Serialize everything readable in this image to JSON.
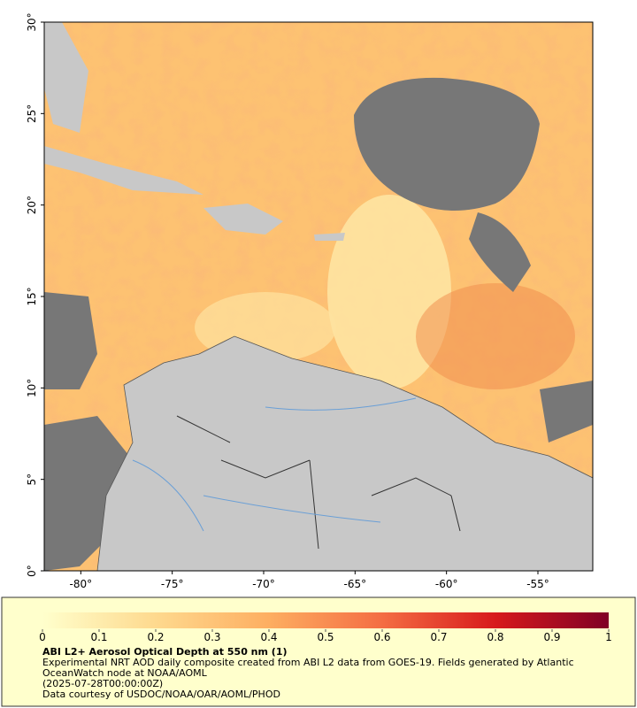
{
  "map": {
    "lon_range": [
      -82,
      -52
    ],
    "lat_range": [
      0,
      30
    ],
    "lon_ticks": [
      {
        "value": -80,
        "label": "-80°"
      },
      {
        "value": -75,
        "label": "-75°"
      },
      {
        "value": -70,
        "label": "-70°"
      },
      {
        "value": -65,
        "label": "-65°"
      },
      {
        "value": -60,
        "label": "-60°"
      },
      {
        "value": -55,
        "label": "-55°"
      }
    ],
    "lat_ticks": [
      {
        "value": 0,
        "label": "0°"
      },
      {
        "value": 5,
        "label": "5°"
      },
      {
        "value": 10,
        "label": "10°"
      },
      {
        "value": 15,
        "label": "15°"
      },
      {
        "value": 20,
        "label": "20°"
      },
      {
        "value": 25,
        "label": "25°"
      },
      {
        "value": 30,
        "label": "30°"
      }
    ]
  },
  "colorbar": {
    "range": [
      0,
      1
    ],
    "ticks": [
      0,
      0.1,
      0.2,
      0.3,
      0.4,
      0.5,
      0.6,
      0.7,
      0.8,
      0.9,
      1
    ]
  },
  "caption": {
    "title": "ABI L2+ Aerosol Optical Depth at 550 nm (1)",
    "description": "Experimental NRT AOD daily composite created from ABI L2 data from GOES-19. Fields generated by Atlantic OceanWatch node at NOAA/AOML",
    "date": "(2025-07-28T00:00:00Z)",
    "credit": "Data courtesy of USDOC/NOAA/OAR/AOML/PHOD"
  }
}
